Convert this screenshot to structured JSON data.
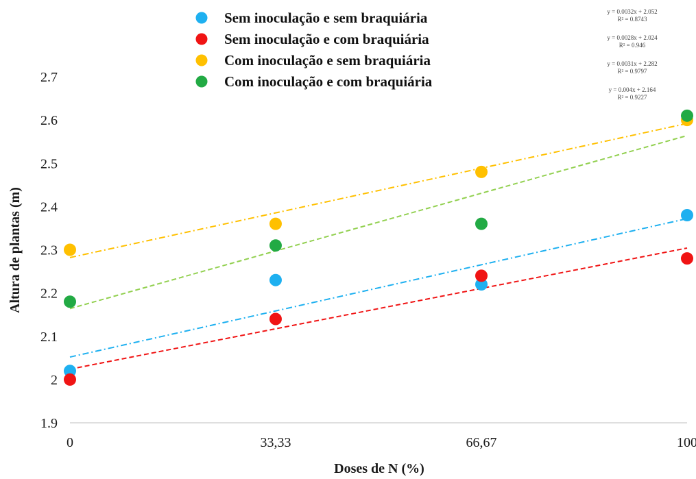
{
  "chart_data": {
    "type": "scatter",
    "title": "",
    "xlabel": "Doses de N (%)",
    "ylabel": "Altura de plantas (m)",
    "x": [
      0,
      33.33,
      66.67,
      100
    ],
    "x_tick_labels": [
      "0",
      "33,33",
      "66,67",
      "100"
    ],
    "y_ticks": [
      "1.9",
      "2",
      "2.1",
      "2.2",
      "2.3",
      "2.4",
      "2.5",
      "2.6",
      "2.7"
    ],
    "xlim": [
      0,
      100
    ],
    "ylim": [
      1.9,
      2.7
    ],
    "grid": false,
    "legend_position": "top",
    "series": [
      {
        "name": "Sem inoculação e sem braquiária",
        "color": "#1EB0F0",
        "values": [
          2.02,
          2.23,
          2.22,
          2.38
        ],
        "trendline": {
          "slope": 0.0032,
          "intercept": 2.052,
          "style": "dash-dot"
        },
        "equation": "y = 0.0032x + 2.052",
        "r2": "R² = 0.8743"
      },
      {
        "name": "Sem inoculação e com braquiária",
        "color": "#F01414",
        "values": [
          2.0,
          2.14,
          2.24,
          2.28
        ],
        "trendline": {
          "slope": 0.0028,
          "intercept": 2.024,
          "style": "dash"
        },
        "equation": "y = 0.0028x + 2.024",
        "r2": "R² = 0.946"
      },
      {
        "name": "Com inoculação e sem braquiária",
        "color": "#FFC000",
        "values": [
          2.3,
          2.36,
          2.48,
          2.6
        ],
        "trendline": {
          "slope": 0.0031,
          "intercept": 2.282,
          "style": "dash-dot"
        },
        "equation": "y = 0.0031x + 2.282",
        "r2": "R² = 0.9797"
      },
      {
        "name": "Com inoculação e com braquiária",
        "color": "#22AA44",
        "values": [
          2.18,
          2.31,
          2.36,
          2.61
        ],
        "trendline": {
          "slope": 0.004,
          "intercept": 2.164,
          "style": "dash",
          "color": "#92D050"
        },
        "equation": "y = 0.004x + 2.164",
        "r2": "R² = 0.9227"
      }
    ]
  }
}
